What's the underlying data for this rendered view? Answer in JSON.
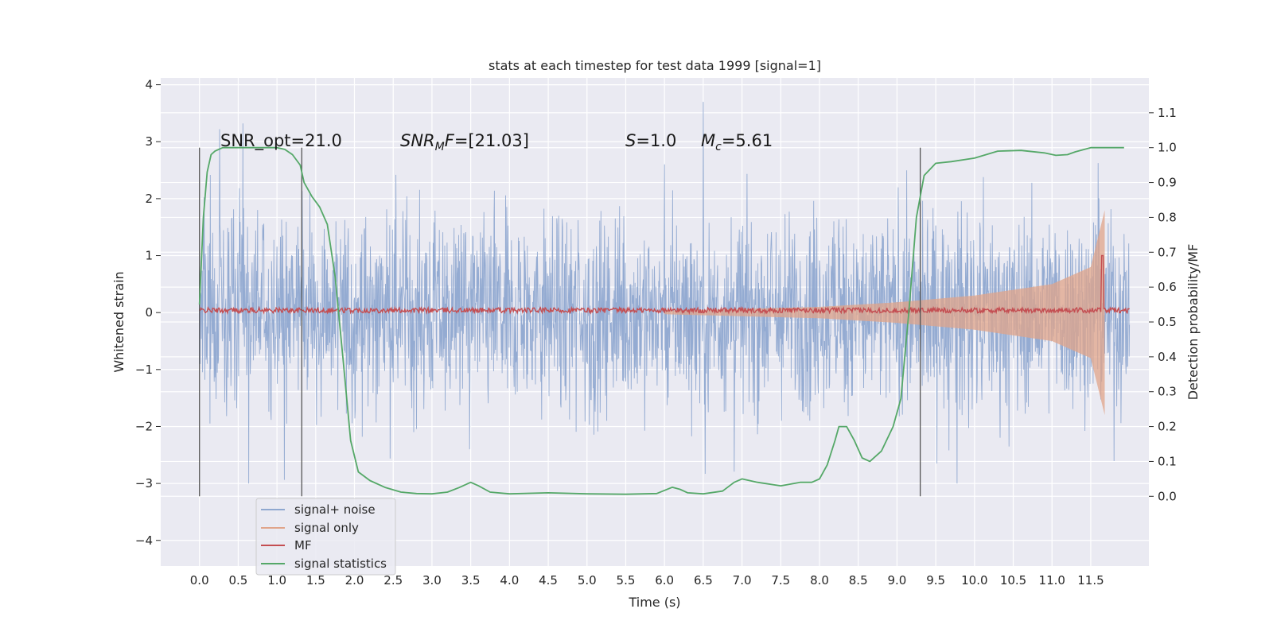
{
  "chart_data": {
    "type": "line",
    "title": "stats at each timestep for test data 1999 [signal=1]",
    "xlabel": "Time (s)",
    "ylabel": "Whitened strain",
    "y2label": "Detection probability/MF",
    "xlim": [
      -0.5,
      12.25
    ],
    "ylim": [
      -4.45,
      4.12
    ],
    "y2lim": [
      -0.2,
      1.2
    ],
    "xticks": [
      "0.0",
      "0.5",
      "1.0",
      "1.5",
      "2.0",
      "2.5",
      "3.0",
      "3.5",
      "4.0",
      "4.5",
      "5.0",
      "5.5",
      "6.0",
      "6.5",
      "7.0",
      "7.5",
      "8.0",
      "8.5",
      "9.0",
      "9.5",
      "10.0",
      "10.5",
      "11.0",
      "11.5"
    ],
    "yticks": [
      "4",
      "3",
      "2",
      "1",
      "0",
      "−1",
      "−2",
      "−3",
      "−4"
    ],
    "y2ticks": [
      "1.1",
      "1.0",
      "0.9",
      "0.8",
      "0.7",
      "0.6",
      "0.5",
      "0.4",
      "0.3",
      "0.2",
      "0.1",
      "0.0"
    ],
    "grid": true,
    "legend_position": "lower-left",
    "annotations": {
      "snr_opt": "SNR_opt=21.0",
      "snr_mf": "SNR_MF=[21.03]",
      "s": "S=1.0",
      "mc": "M_c=5.61"
    },
    "series": [
      {
        "name": "signal+ noise",
        "color": "#8fa8d0",
        "description_range": [
          -3.0,
          3.7
        ],
        "x_range": [
          0.0,
          12.0
        ]
      },
      {
        "name": "signal only",
        "color": "#e0a48a",
        "envelope": [
          [
            6.0,
            0.03
          ],
          [
            8.0,
            0.1
          ],
          [
            9.0,
            0.18
          ],
          [
            10.0,
            0.3
          ],
          [
            11.0,
            0.5
          ],
          [
            11.5,
            0.8
          ],
          [
            11.68,
            1.8
          ]
        ]
      },
      {
        "name": "MF",
        "color": "#c44e52",
        "peak": {
          "x": 11.65,
          "y": 1.0
        }
      },
      {
        "name": "signal statistics",
        "color": "#55a868",
        "x": [
          0.0,
          0.05,
          0.1,
          0.15,
          0.2,
          0.3,
          0.5,
          0.8,
          1.0,
          1.1,
          1.2,
          1.3,
          1.35,
          1.45,
          1.55,
          1.65,
          1.75,
          1.85,
          1.95,
          2.05,
          2.2,
          2.4,
          2.6,
          2.8,
          3.0,
          3.2,
          3.35,
          3.5,
          3.6,
          3.75,
          4.0,
          4.5,
          5.0,
          5.5,
          5.9,
          6.1,
          6.2,
          6.3,
          6.5,
          6.75,
          6.9,
          7.0,
          7.2,
          7.5,
          7.75,
          7.9,
          8.0,
          8.1,
          8.2,
          8.25,
          8.35,
          8.45,
          8.55,
          8.65,
          8.8,
          8.95,
          9.05,
          9.15,
          9.25,
          9.35,
          9.5,
          9.7,
          10.0,
          10.3,
          10.6,
          10.9,
          11.05,
          11.2,
          11.3,
          11.5,
          11.75,
          11.93
        ],
        "y": [
          0.55,
          0.8,
          0.93,
          0.98,
          0.99,
          1.0,
          1.0,
          1.0,
          1.0,
          0.995,
          0.98,
          0.95,
          0.9,
          0.86,
          0.83,
          0.78,
          0.63,
          0.4,
          0.16,
          0.07,
          0.045,
          0.025,
          0.012,
          0.008,
          0.007,
          0.012,
          0.025,
          0.04,
          0.03,
          0.012,
          0.007,
          0.01,
          0.007,
          0.006,
          0.008,
          0.026,
          0.02,
          0.01,
          0.007,
          0.015,
          0.04,
          0.05,
          0.04,
          0.03,
          0.04,
          0.04,
          0.05,
          0.09,
          0.16,
          0.2,
          0.2,
          0.16,
          0.11,
          0.1,
          0.13,
          0.2,
          0.28,
          0.52,
          0.8,
          0.92,
          0.955,
          0.96,
          0.97,
          0.99,
          0.992,
          0.985,
          0.978,
          0.98,
          0.988,
          1.0,
          1.0,
          1.0
        ]
      },
      {
        "name": "vertical markers",
        "color": "#555555",
        "x": [
          0.0,
          1.32,
          9.3
        ]
      }
    ]
  }
}
